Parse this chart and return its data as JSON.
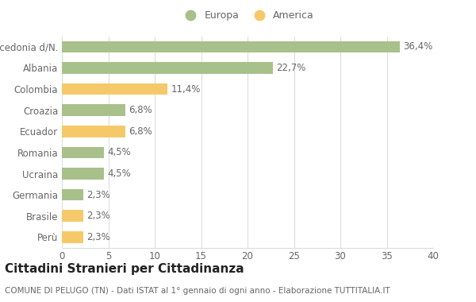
{
  "categories": [
    "Macedonia d/N.",
    "Albania",
    "Colombia",
    "Croazia",
    "Ecuador",
    "Romania",
    "Ucraina",
    "Germania",
    "Brasile",
    "Perù"
  ],
  "values": [
    36.4,
    22.7,
    11.4,
    6.8,
    6.8,
    4.5,
    4.5,
    2.3,
    2.3,
    2.3
  ],
  "labels": [
    "36,4%",
    "22,7%",
    "11,4%",
    "6,8%",
    "6,8%",
    "4,5%",
    "4,5%",
    "2,3%",
    "2,3%",
    "2,3%"
  ],
  "colors": [
    "#a8c08a",
    "#a8c08a",
    "#f5c96a",
    "#a8c08a",
    "#f5c96a",
    "#a8c08a",
    "#a8c08a",
    "#a8c08a",
    "#f5c96a",
    "#f5c96a"
  ],
  "europa_color": "#a8c08a",
  "america_color": "#f5c96a",
  "background_color": "#ffffff",
  "grid_color": "#dddddd",
  "xlim": [
    0,
    40
  ],
  "xticks": [
    0,
    5,
    10,
    15,
    20,
    25,
    30,
    35,
    40
  ],
  "title": "Cittadini Stranieri per Cittadinanza",
  "subtitle": "COMUNE DI PELUGO (TN) - Dati ISTAT al 1° gennaio di ogni anno - Elaborazione TUTTITALIA.IT",
  "legend_europa": "Europa",
  "legend_america": "America",
  "bar_height": 0.55,
  "label_fontsize": 8.5,
  "tick_fontsize": 8.5,
  "title_fontsize": 11,
  "subtitle_fontsize": 7.5,
  "label_color": "#666666",
  "tick_color": "#666666"
}
